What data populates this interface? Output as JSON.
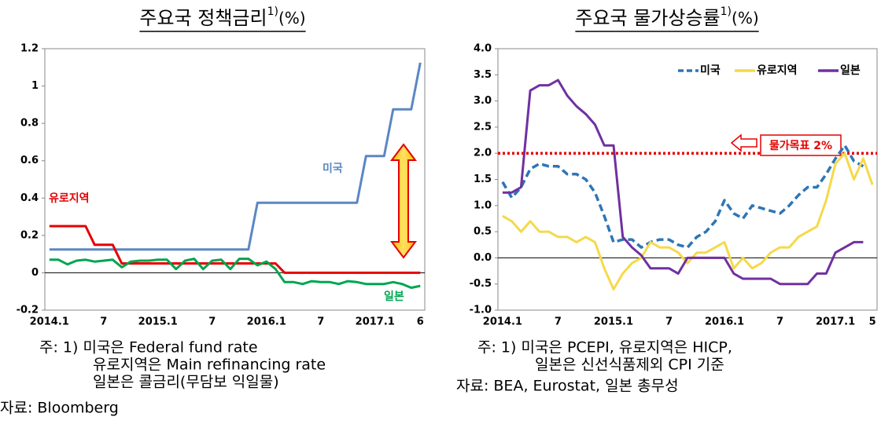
{
  "chart_data": [
    {
      "type": "line",
      "title": "주요국 정책금리",
      "title_sup": "1)",
      "title_unit": "(%)",
      "categories": [
        "2014.1",
        null,
        null,
        null,
        null,
        null,
        "7",
        null,
        null,
        null,
        null,
        null,
        "2015.1",
        null,
        null,
        null,
        null,
        null,
        "7",
        null,
        null,
        null,
        null,
        null,
        "2016.1",
        null,
        null,
        null,
        null,
        null,
        "7",
        null,
        null,
        null,
        null,
        null,
        "2017.1",
        null,
        null,
        null,
        null,
        "6"
      ],
      "ylim": [
        -0.2,
        1.2
      ],
      "yticks": [
        -0.2,
        0,
        0.2,
        0.4,
        0.6,
        0.8,
        1,
        1.2
      ],
      "series": [
        {
          "name": "미국",
          "color": "#5b87c3",
          "values": [
            0.125,
            0.125,
            0.125,
            0.125,
            0.125,
            0.125,
            0.125,
            0.125,
            0.125,
            0.125,
            0.125,
            0.125,
            0.125,
            0.125,
            0.125,
            0.125,
            0.125,
            0.125,
            0.125,
            0.125,
            0.125,
            0.125,
            0.125,
            0.375,
            0.375,
            0.375,
            0.375,
            0.375,
            0.375,
            0.375,
            0.375,
            0.375,
            0.375,
            0.375,
            0.375,
            0.625,
            0.625,
            0.625,
            0.875,
            0.875,
            0.875,
            1.125
          ]
        },
        {
          "name": "유로지역",
          "color": "#e60000",
          "values": [
            0.25,
            0.25,
            0.25,
            0.25,
            0.25,
            0.15,
            0.15,
            0.15,
            0.05,
            0.05,
            0.05,
            0.05,
            0.05,
            0.05,
            0.05,
            0.05,
            0.05,
            0.05,
            0.05,
            0.05,
            0.05,
            0.05,
            0.05,
            0.05,
            0.05,
            0.05,
            0,
            0,
            0,
            0,
            0,
            0,
            0,
            0,
            0,
            0,
            0,
            0,
            0,
            0,
            0,
            0
          ]
        },
        {
          "name": "일본",
          "color": "#00a550",
          "values": [
            0.07,
            0.07,
            0.045,
            0.065,
            0.07,
            0.06,
            0.065,
            0.07,
            0.03,
            0.06,
            0.065,
            0.065,
            0.07,
            0.07,
            0.02,
            0.065,
            0.075,
            0.02,
            0.065,
            0.07,
            0.02,
            0.075,
            0.075,
            0.04,
            0.06,
            0.02,
            -0.05,
            -0.05,
            -0.06,
            -0.045,
            -0.05,
            -0.05,
            -0.06,
            -0.045,
            -0.05,
            -0.06,
            -0.06,
            -0.06,
            -0.05,
            -0.06,
            -0.08,
            -0.07
          ]
        }
      ],
      "notes": [
        "주: 1) 미국은 Federal fund rate",
        "유로지역은 Main refinancing rate",
        "일본은 콜금리(무담보 익일물)"
      ],
      "source": "자료: Bloomberg"
    },
    {
      "type": "line",
      "title": "주요국 물가상승률",
      "title_sup": "1)",
      "title_unit": "(%)",
      "categories": [
        "2014.1",
        null,
        null,
        null,
        null,
        null,
        "7",
        null,
        null,
        null,
        null,
        null,
        "2015.1",
        null,
        null,
        null,
        null,
        null,
        "7",
        null,
        null,
        null,
        null,
        null,
        "2016.1",
        null,
        null,
        null,
        null,
        null,
        "7",
        null,
        null,
        null,
        null,
        null,
        "2017.1",
        null,
        null,
        null,
        "5"
      ],
      "ylim": [
        -1.0,
        4.0
      ],
      "yticks": [
        {
          "value": -1.0,
          "label": "-1.0"
        },
        -0.5,
        {
          "value": 0,
          "label": "0.0"
        },
        0.5,
        {
          "value": 1.0,
          "label": "1.0"
        },
        1.5,
        {
          "value": 2.0,
          "label": "2.0"
        },
        2.5,
        {
          "value": 3.0,
          "label": "3.0"
        },
        3.5,
        {
          "value": 4.0,
          "label": "4.0"
        }
      ],
      "legend": "upper right",
      "series": [
        {
          "name": "미국",
          "color": "#2e75b6",
          "dash": true,
          "values": [
            1.45,
            1.15,
            1.35,
            1.7,
            1.8,
            1.75,
            1.75,
            1.6,
            1.6,
            1.5,
            1.25,
            0.8,
            0.3,
            0.35,
            0.35,
            0.2,
            0.3,
            0.35,
            0.35,
            0.25,
            0.2,
            0.4,
            0.5,
            0.7,
            1.1,
            0.85,
            0.75,
            1.0,
            0.95,
            0.9,
            0.85,
            1.0,
            1.2,
            1.35,
            1.35,
            1.6,
            1.9,
            2.15,
            1.85,
            1.75,
            null
          ]
        },
        {
          "name": "유로지역",
          "color": "#f5d94a",
          "values": [
            0.8,
            0.7,
            0.5,
            0.7,
            0.5,
            0.5,
            0.4,
            0.4,
            0.3,
            0.4,
            0.3,
            -0.2,
            -0.6,
            -0.3,
            -0.1,
            0.0,
            0.3,
            0.2,
            0.2,
            0.1,
            -0.1,
            0.1,
            0.1,
            0.2,
            0.3,
            -0.2,
            0.0,
            -0.2,
            -0.1,
            0.1,
            0.2,
            0.2,
            0.4,
            0.5,
            0.6,
            1.1,
            1.8,
            2.0,
            1.5,
            1.9,
            1.4
          ]
        },
        {
          "name": "일본",
          "color": "#7030a0",
          "values": [
            1.25,
            1.25,
            1.35,
            3.2,
            3.3,
            3.3,
            3.4,
            3.1,
            2.9,
            2.75,
            2.55,
            2.15,
            2.15,
            0.4,
            0.2,
            0.05,
            -0.2,
            -0.2,
            -0.2,
            -0.3,
            0,
            0,
            0,
            0,
            0,
            -0.3,
            -0.4,
            -0.4,
            -0.4,
            -0.4,
            -0.5,
            -0.5,
            -0.5,
            -0.5,
            -0.3,
            -0.3,
            0.1,
            0.2,
            0.3,
            0.3,
            null
          ]
        }
      ],
      "target_line": {
        "value": 2.0,
        "color": "#e60000",
        "label": "물가목표 2%"
      },
      "notes": [
        "주: 1) 미국은 PCEPI, 유로지역은 HICP,",
        "일본은 신선식품제외 CPI 기준"
      ],
      "source": "자료: BEA, Eurostat, 일본 총무성"
    }
  ]
}
